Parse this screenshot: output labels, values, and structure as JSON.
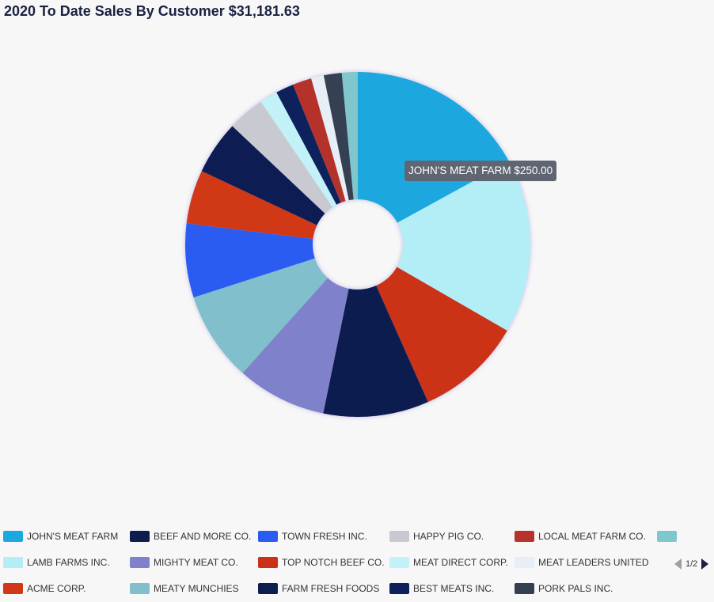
{
  "title": "2020 To Date Sales By Customer $31,181.63",
  "tooltip": "JOHN'S MEAT FARM $250.00",
  "pager": {
    "text": "1/2"
  },
  "chart_data": {
    "type": "pie",
    "style": "donut",
    "title": "2020 To Date Sales By Customer $31,181.63",
    "legend_position": "bottom",
    "slices": [
      {
        "name": "JOHN'S MEAT FARM",
        "value": 17.2,
        "color": "#1ba8df"
      },
      {
        "name": "LAMB FARMS INC.",
        "value": 16.5,
        "color": "#b3edf6"
      },
      {
        "name": "TOP NOTCH BEEF CO.",
        "value": 10.1,
        "color": "#cb3117"
      },
      {
        "name": "BEEF AND MORE CO.",
        "value": 10.0,
        "color": "#0d1d4f"
      },
      {
        "name": "MIGHTY MEAT CO.",
        "value": 8.5,
        "color": "#7f82ca"
      },
      {
        "name": "MEATY MUNCHIES",
        "value": 8.5,
        "color": "#80bfcb"
      },
      {
        "name": "TOWN FRESH INC.",
        "value": 7.0,
        "color": "#2a5cf1"
      },
      {
        "name": "ACME CORP.",
        "value": 5.1,
        "color": "#d03817"
      },
      {
        "name": "FARM FRESH FOODS",
        "value": 5.1,
        "color": "#0c1d52"
      },
      {
        "name": "HAPPY PIG CO.",
        "value": 3.5,
        "color": "#c8c9d1"
      },
      {
        "name": "MEAT DIRECT CORP.",
        "value": 1.7,
        "color": "#c3f1f8"
      },
      {
        "name": "BEST MEATS INC.",
        "value": 1.7,
        "color": "#0e215c"
      },
      {
        "name": "LOCAL MEAT FARM CO.",
        "value": 1.8,
        "color": "#b5332a"
      },
      {
        "name": "MEAT LEADERS UNITED",
        "value": 1.2,
        "color": "#e7eef6"
      },
      {
        "name": "PORK PALS INC.",
        "value": 1.7,
        "color": "#353f52"
      },
      {
        "name": "",
        "value": 1.5,
        "color": "#7fc6cd"
      }
    ]
  },
  "legend": [
    [
      {
        "label": "JOHN'S MEAT FARM",
        "color": "#1ba8df"
      },
      {
        "label": "BEEF AND MORE CO.",
        "color": "#0d1d4f"
      },
      {
        "label": "TOWN FRESH INC.",
        "color": "#2a5cf1"
      },
      {
        "label": "HAPPY PIG CO.",
        "color": "#c8c9d1"
      },
      {
        "label": "LOCAL MEAT FARM CO.",
        "color": "#b5332a"
      },
      {
        "label": "",
        "color": "#7fc6cd"
      }
    ],
    [
      {
        "label": "LAMB FARMS INC.",
        "color": "#b3edf6"
      },
      {
        "label": "MIGHTY MEAT CO.",
        "color": "#7f82ca"
      },
      {
        "label": "TOP NOTCH BEEF CO.",
        "color": "#cb3117"
      },
      {
        "label": "MEAT DIRECT CORP.",
        "color": "#c3f1f8"
      },
      {
        "label": "MEAT LEADERS UNITED",
        "color": "#e7eef6"
      }
    ],
    [
      {
        "label": "ACME CORP.",
        "color": "#d03817"
      },
      {
        "label": "MEATY MUNCHIES",
        "color": "#80bfcb"
      },
      {
        "label": "FARM FRESH FOODS",
        "color": "#0c1d52"
      },
      {
        "label": "BEST MEATS INC.",
        "color": "#0e215c"
      },
      {
        "label": "PORK PALS INC.",
        "color": "#353f52"
      }
    ]
  ]
}
